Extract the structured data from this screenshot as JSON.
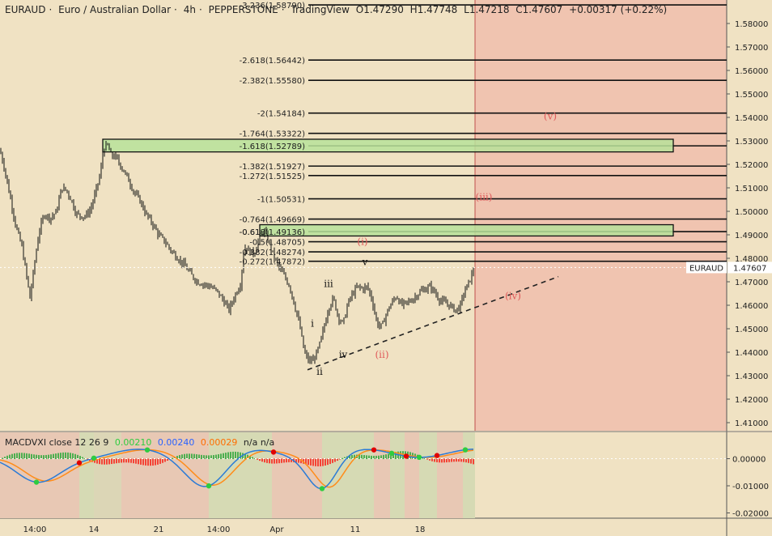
{
  "header": {
    "symbol": "EURAUD",
    "name": "Euro / Australian Dollar",
    "interval": "4h",
    "exchange": "PEPPERSTONE",
    "source": "TradingView",
    "open": "O1.47290",
    "high": "H1.47748",
    "low": "L1.47218",
    "close": "C1.47607",
    "change": "+0.00317 (+0.22%)"
  },
  "price_label": {
    "symbol": "EURAUD",
    "value": "1.47607"
  },
  "macd_header": {
    "title": "MACDVXI close 12 26 9",
    "v1": "0.00210",
    "v2": "0.00240",
    "v3": "0.00029",
    "na": "n/a n/a",
    "colors": {
      "v1": "#2ecc40",
      "v2": "#2962ff",
      "v3": "#ff6d00"
    }
  },
  "colors": {
    "background": "#f0e2c3",
    "future_zone": "#f0c4b0",
    "green_zone": "#b7e29a",
    "wave_red": "#e05a5a",
    "up": "#26a69a",
    "down": "#ef5350"
  },
  "chart_data": [
    {
      "type": "candlestick",
      "title": "EURAUD · Euro / Australian Dollar · 4h · PEPPERSTONE",
      "ylim": [
        1.405,
        1.595
      ],
      "y_ticks": [
        "1.59000",
        "1.58000",
        "1.57000",
        "1.56000",
        "1.55000",
        "1.54000",
        "1.53000",
        "1.52000",
        "1.51000",
        "1.50000",
        "1.49000",
        "1.48000",
        "1.47000",
        "1.46000",
        "1.45000",
        "1.44000",
        "1.43000",
        "1.42000",
        "1.41000"
      ],
      "x_ticks": [
        "14:00",
        "14",
        "21",
        "14:00",
        "Apr",
        "11",
        "18"
      ],
      "price_path": [
        [
          0,
          1.526
        ],
        [
          5,
          1.519
        ],
        [
          12,
          1.507
        ],
        [
          20,
          1.493
        ],
        [
          27,
          1.485
        ],
        [
          33,
          1.472
        ],
        [
          37,
          1.463
        ],
        [
          42,
          1.476
        ],
        [
          48,
          1.491
        ],
        [
          55,
          1.499
        ],
        [
          62,
          1.497
        ],
        [
          70,
          1.5
        ],
        [
          76,
          1.51
        ],
        [
          82,
          1.509
        ],
        [
          88,
          1.505
        ],
        [
          94,
          1.499
        ],
        [
          100,
          1.498
        ],
        [
          106,
          1.498
        ],
        [
          112,
          1.501
        ],
        [
          118,
          1.508
        ],
        [
          124,
          1.516
        ],
        [
          128,
          1.527
        ],
        [
          133,
          1.528
        ],
        [
          137,
          1.524
        ],
        [
          143,
          1.523
        ],
        [
          150,
          1.519
        ],
        [
          158,
          1.514
        ],
        [
          166,
          1.508
        ],
        [
          174,
          1.504
        ],
        [
          180,
          1.499
        ],
        [
          188,
          1.495
        ],
        [
          196,
          1.49
        ],
        [
          204,
          1.487
        ],
        [
          212,
          1.483
        ],
        [
          220,
          1.48
        ],
        [
          228,
          1.477
        ],
        [
          236,
          1.473
        ],
        [
          244,
          1.47
        ],
        [
          252,
          1.469
        ],
        [
          260,
          1.468
        ],
        [
          268,
          1.466
        ],
        [
          276,
          1.462
        ],
        [
          283,
          1.458
        ],
        [
          290,
          1.464
        ],
        [
          297,
          1.469
        ],
        [
          302,
          1.485
        ],
        [
          308,
          1.483
        ],
        [
          314,
          1.482
        ],
        [
          320,
          1.488
        ],
        [
          326,
          1.492
        ],
        [
          332,
          1.487
        ],
        [
          338,
          1.481
        ],
        [
          345,
          1.476
        ],
        [
          352,
          1.472
        ],
        [
          358,
          1.468
        ],
        [
          364,
          1.46
        ],
        [
          370,
          1.452
        ],
        [
          376,
          1.44
        ],
        [
          382,
          1.436
        ],
        [
          388,
          1.437
        ],
        [
          394,
          1.442
        ],
        [
          400,
          1.45
        ],
        [
          406,
          1.459
        ],
        [
          412,
          1.463
        ],
        [
          418,
          1.455
        ],
        [
          424,
          1.452
        ],
        [
          430,
          1.461
        ],
        [
          436,
          1.465
        ],
        [
          442,
          1.468
        ],
        [
          448,
          1.467
        ],
        [
          454,
          1.468
        ],
        [
          460,
          1.462
        ],
        [
          466,
          1.452
        ],
        [
          472,
          1.451
        ],
        [
          478,
          1.457
        ],
        [
          484,
          1.461
        ],
        [
          490,
          1.464
        ],
        [
          496,
          1.46
        ],
        [
          502,
          1.461
        ],
        [
          508,
          1.462
        ],
        [
          514,
          1.464
        ],
        [
          520,
          1.466
        ],
        [
          526,
          1.467
        ],
        [
          532,
          1.468
        ],
        [
          538,
          1.465
        ],
        [
          544,
          1.462
        ],
        [
          550,
          1.461
        ],
        [
          556,
          1.46
        ],
        [
          562,
          1.458
        ],
        [
          568,
          1.459
        ],
        [
          574,
          1.466
        ],
        [
          580,
          1.47
        ],
        [
          586,
          1.476
        ]
      ],
      "fib_levels": [
        {
          "label": "-3.236(1.58790)",
          "value": 1.5879
        },
        {
          "label": "-2.618(1.56442)",
          "value": 1.56442
        },
        {
          "label": "-2.382(1.55580)",
          "value": 1.5558
        },
        {
          "label": "-2(1.54184)",
          "value": 1.54184
        },
        {
          "label": "-1.764(1.53322)",
          "value": 1.53322
        },
        {
          "label": "-1.618(1.52789)",
          "value": 1.52789
        },
        {
          "label": "-1.382(1.51927)",
          "value": 1.51927
        },
        {
          "label": "-1.272(1.51525)",
          "value": 1.51525
        },
        {
          "label": "-1(1.50531)",
          "value": 1.50531
        },
        {
          "label": "-0.764(1.49669)",
          "value": 1.49669
        },
        {
          "label": "-0.618(1.49136)",
          "value": 1.49136
        },
        {
          "label": "-0.5(1.48705)",
          "value": 1.48705
        },
        {
          "label": "-0.382(1.48274)",
          "value": 1.48274
        },
        {
          "label": "-0.272(1.47872)",
          "value": 1.47872
        }
      ],
      "zones": [
        {
          "from": 1.5253,
          "to": 1.5307
        },
        {
          "from": 1.4895,
          "to": 1.4943
        }
      ],
      "wave_labels": [
        {
          "text": "(v)",
          "x": 680,
          "price": 1.5405,
          "color": "red"
        },
        {
          "text": "(iii)",
          "x": 598,
          "price": 1.5061,
          "color": "red"
        },
        {
          "text": "(i)",
          "x": 448,
          "price": 1.4871,
          "color": "red"
        },
        {
          "text": "v",
          "x": 451,
          "price": 1.4785,
          "color": "black"
        },
        {
          "text": "iii",
          "x": 406,
          "price": 1.4691,
          "color": "black"
        },
        {
          "text": "i",
          "x": 386,
          "price": 1.4522,
          "color": "black"
        },
        {
          "text": "iv",
          "x": 424,
          "price": 1.4389,
          "color": "black"
        },
        {
          "text": "(ii)",
          "x": 472,
          "price": 1.4389,
          "color": "red"
        },
        {
          "text": "ii",
          "x": 395,
          "price": 1.4317,
          "color": "black"
        },
        {
          "text": "(iv)",
          "x": 634,
          "price": 1.4639,
          "color": "red"
        }
      ],
      "trendline": {
        "x1": 380,
        "p1": 1.4325,
        "x2": 690,
        "p2": 1.4722
      }
    },
    {
      "type": "bar",
      "title": "MACDVXI close 12 26 9",
      "ylim": [
        -0.021,
        0.006
      ],
      "y_ticks": [
        "0.00000",
        "-0.01000",
        "-0.02000"
      ]
    }
  ]
}
